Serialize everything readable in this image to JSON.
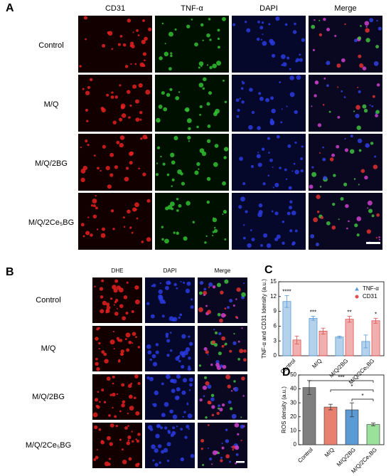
{
  "panel_a": {
    "label": "A",
    "columns": [
      "CD31",
      "TNF-α",
      "DAPI",
      "Merge"
    ],
    "rows": [
      "Control",
      "M/Q",
      "M/Q/2BG",
      "M/Q/2Ce₅BG"
    ]
  },
  "panel_b": {
    "label": "B",
    "columns": [
      "DHE",
      "DAPI",
      "Merge"
    ],
    "rows": [
      "Control",
      "M/Q",
      "M/Q/2BG",
      "M/Q/2Ce₅BG"
    ]
  },
  "chart_data": [
    {
      "label": "C",
      "type": "bar",
      "y_label": "TNF-α and CD31 Idensity (a.u.)",
      "categories": [
        "Control",
        "M/Q",
        "M/Q/2BG",
        "M/Q/2Ce₅BG"
      ],
      "series": [
        {
          "name": "TNF-α",
          "color": "#5b9bd5",
          "values": [
            11,
            7.6,
            3.8,
            2.9
          ],
          "errors": [
            1.2,
            0.4,
            0.2,
            1.3
          ]
        },
        {
          "name": "CD31",
          "color": "#e05050",
          "values": [
            3.2,
            5,
            7.4,
            7.1
          ],
          "errors": [
            0.8,
            0.6,
            0.6,
            0.5
          ]
        }
      ],
      "ylim": [
        0,
        15
      ],
      "yticks": [
        0,
        3,
        6,
        9,
        12,
        15
      ],
      "significance": [
        "****",
        "***",
        "**",
        "*"
      ],
      "legend": "upper right"
    },
    {
      "label": "D",
      "type": "bar",
      "y_label": "ROS density (a.u.)",
      "categories": [
        "Control",
        "M/Q",
        "M/Q/2BG",
        "M/Q/2Ce₅BG"
      ],
      "values": [
        41,
        27,
        25,
        14.5
      ],
      "errors": [
        5,
        2,
        5,
        1
      ],
      "colors": [
        "#7f7f7f",
        "#e8806f",
        "#5b9bd5",
        "#9be09b"
      ],
      "ylim": [
        0,
        50
      ],
      "yticks": [
        0,
        10,
        20,
        30,
        40,
        50
      ],
      "brackets": [
        "***",
        "*",
        "*"
      ]
    }
  ]
}
